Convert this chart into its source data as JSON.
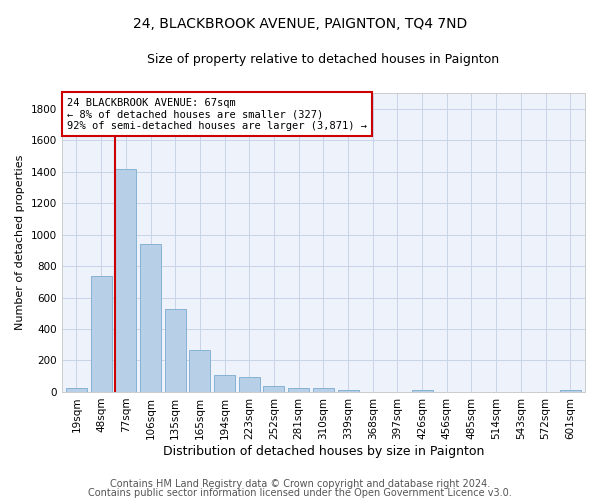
{
  "title": "24, BLACKBROOK AVENUE, PAIGNTON, TQ4 7ND",
  "subtitle": "Size of property relative to detached houses in Paignton",
  "xlabel": "Distribution of detached houses by size in Paignton",
  "ylabel": "Number of detached properties",
  "categories": [
    "19sqm",
    "48sqm",
    "77sqm",
    "106sqm",
    "135sqm",
    "165sqm",
    "194sqm",
    "223sqm",
    "252sqm",
    "281sqm",
    "310sqm",
    "339sqm",
    "368sqm",
    "397sqm",
    "426sqm",
    "456sqm",
    "485sqm",
    "514sqm",
    "543sqm",
    "572sqm",
    "601sqm"
  ],
  "values": [
    22,
    740,
    1420,
    940,
    530,
    265,
    105,
    95,
    38,
    28,
    28,
    15,
    0,
    0,
    15,
    0,
    0,
    0,
    0,
    0,
    15
  ],
  "bar_color": "#b8cfe8",
  "bar_edge_color": "#7aabcf",
  "vline_x_index": 2,
  "vline_color": "#cc0000",
  "annotation_text": "24 BLACKBROOK AVENUE: 67sqm\n← 8% of detached houses are smaller (327)\n92% of semi-detached houses are larger (3,871) →",
  "annotation_box_facecolor": "#ffffff",
  "annotation_box_edgecolor": "#cc0000",
  "ylim": [
    0,
    1900
  ],
  "yticks": [
    0,
    200,
    400,
    600,
    800,
    1000,
    1200,
    1400,
    1600,
    1800
  ],
  "footer1": "Contains HM Land Registry data © Crown copyright and database right 2024.",
  "footer2": "Contains public sector information licensed under the Open Government Licence v3.0.",
  "bg_color": "#edf2fb",
  "grid_color": "#c8d4e8",
  "title_fontsize": 10,
  "subtitle_fontsize": 9,
  "xlabel_fontsize": 9,
  "ylabel_fontsize": 8,
  "tick_fontsize": 7.5,
  "annot_fontsize": 7.5,
  "footer_fontsize": 7
}
